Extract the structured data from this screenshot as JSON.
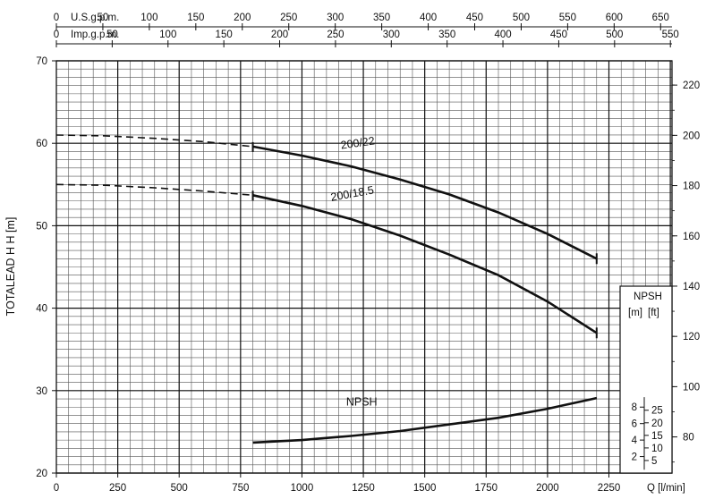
{
  "chart_data": {
    "type": "line",
    "xlabel": "Q [l/min]",
    "ylabel": "TOTAL HEAD H [m]",
    "x_ticks": [
      0,
      250,
      500,
      750,
      1000,
      1250,
      1500,
      1750,
      2000,
      2250
    ],
    "xlim": [
      0,
      2250
    ],
    "y_ticks": [
      20,
      30,
      40,
      50,
      60,
      70
    ],
    "ylim": [
      20,
      70
    ],
    "grid": true,
    "top_axes": [
      {
        "label": "U.S.g.p.m.",
        "ticks": [
          0,
          50,
          100,
          150,
          200,
          250,
          300,
          350,
          400,
          450,
          500,
          550,
          600,
          650
        ],
        "per_lpm": 0.264172
      },
      {
        "label": "Imp.g.p.m.",
        "ticks": [
          0,
          50,
          100,
          150,
          200,
          250,
          300,
          350,
          400,
          450,
          500,
          550
        ],
        "per_lpm": 0.219969
      }
    ],
    "right_axis": {
      "unit": "ft",
      "ticks": [
        80,
        100,
        120,
        140,
        160,
        180,
        200,
        220
      ]
    },
    "series": [
      {
        "name": "200/22",
        "dashed": {
          "x": [
            0,
            200,
            400,
            600,
            800
          ],
          "y": [
            61.0,
            60.9,
            60.6,
            60.2,
            59.6
          ]
        },
        "solid": {
          "x": [
            800,
            1000,
            1200,
            1400,
            1600,
            1800,
            2000,
            2200
          ],
          "y": [
            59.6,
            58.5,
            57.2,
            55.6,
            53.8,
            51.6,
            49.0,
            46.0
          ]
        }
      },
      {
        "name": "200/18.5",
        "dashed": {
          "x": [
            0,
            200,
            400,
            600,
            800
          ],
          "y": [
            55.0,
            54.9,
            54.6,
            54.2,
            53.7
          ]
        },
        "solid": {
          "x": [
            800,
            1000,
            1200,
            1400,
            1600,
            1800,
            2000,
            2200
          ],
          "y": [
            53.7,
            52.4,
            50.8,
            48.8,
            46.5,
            44.0,
            40.8,
            37.0
          ]
        }
      },
      {
        "name": "NPSH",
        "dashed": {
          "x": [],
          "y": []
        },
        "solid": {
          "x": [
            800,
            1000,
            1200,
            1400,
            1600,
            1800,
            2000,
            2200
          ],
          "y": [
            23.7,
            24.0,
            24.5,
            25.1,
            25.9,
            26.7,
            27.8,
            29.1
          ]
        }
      }
    ],
    "npsh_inset": {
      "title": "NPSH",
      "m_label": "[m]",
      "ft_label": "[ft]",
      "m_ticks": [
        2,
        4,
        6,
        8
      ],
      "ft_ticks": [
        5,
        10,
        15,
        20,
        25
      ]
    }
  }
}
